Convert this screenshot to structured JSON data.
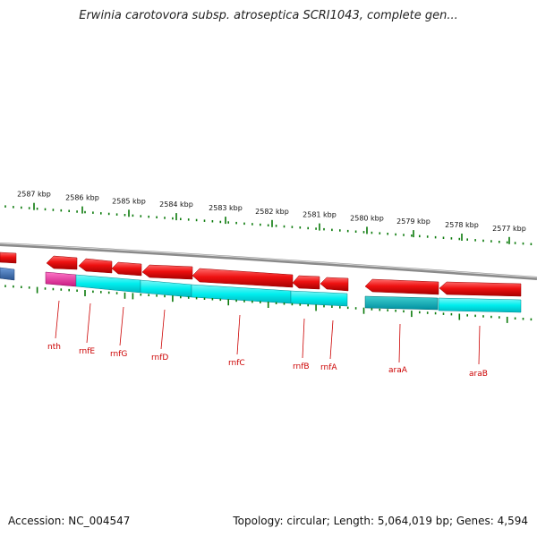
{
  "title": "Erwinia carotovora subsp. atroseptica SCRI1043, complete gen...",
  "colors": {
    "reverse_gene": "#ee1111",
    "forward_gene": "#00eeee",
    "forward_gene_dark": "#00bfc0",
    "rna_gene": "#ee3399",
    "blue_gene": "#3b6fb0",
    "backbone": "#8a8a8a",
    "tick": "#0a7a0a",
    "label": "#cc0000"
  },
  "scale": {
    "unit": "kbp",
    "labels": [
      "2587 kbp",
      "2586 kbp",
      "2585 kbp",
      "2584 kbp",
      "2583 kbp",
      "2582 kbp",
      "2581 kbp",
      "2580 kbp",
      "2579 kbp",
      "2578 kbp",
      "2577 kbp"
    ]
  },
  "genes": [
    {
      "name": "nth"
    },
    {
      "name": "rnfE"
    },
    {
      "name": "rnfG"
    },
    {
      "name": "rnfD"
    },
    {
      "name": "rnfC"
    },
    {
      "name": "rnfB"
    },
    {
      "name": "rnfA"
    },
    {
      "name": "araA"
    },
    {
      "name": "araB"
    }
  ],
  "footer": {
    "accession": "Accession: NC_004547",
    "stats": "Topology: circular; Length: 5,064,019 bp; Genes: 4,594"
  }
}
